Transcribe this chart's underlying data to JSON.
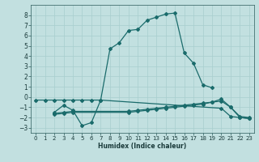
{
  "xlabel": "Humidex (Indice chaleur)",
  "bg_color": "#c2e0e0",
  "grid_color": "#a8cece",
  "line_color": "#1a6b6b",
  "xlim": [
    -0.5,
    23.5
  ],
  "ylim": [
    -3.5,
    9.0
  ],
  "xticks": [
    0,
    1,
    2,
    3,
    4,
    5,
    6,
    7,
    8,
    9,
    10,
    11,
    12,
    13,
    14,
    15,
    16,
    17,
    18,
    19,
    20,
    21,
    22,
    23
  ],
  "yticks": [
    -3,
    -2,
    -1,
    0,
    1,
    2,
    3,
    4,
    5,
    6,
    7,
    8
  ],
  "lines": [
    {
      "x": [
        0,
        1,
        2,
        3,
        4,
        5,
        6,
        7,
        8,
        9,
        10,
        11,
        12,
        13,
        14,
        15,
        16,
        17,
        18,
        19
      ],
      "y": [
        -0.3,
        -0.3,
        -0.3,
        -0.3,
        -0.3,
        -0.3,
        -0.3,
        -0.3,
        4.7,
        5.3,
        6.5,
        6.6,
        7.5,
        7.8,
        8.1,
        8.2,
        4.3,
        3.3,
        1.2,
        0.9
      ]
    },
    {
      "x": [
        2,
        3,
        4,
        5,
        6,
        7,
        20,
        21,
        22,
        23
      ],
      "y": [
        -1.5,
        -0.8,
        -1.3,
        -2.8,
        -2.5,
        -0.3,
        -1.1,
        -1.9,
        -2.0,
        -2.1
      ]
    },
    {
      "x": [
        2,
        3,
        4,
        10,
        11,
        12,
        13,
        14,
        15,
        16,
        17,
        18,
        19,
        20,
        21,
        22,
        23
      ],
      "y": [
        -1.6,
        -1.5,
        -1.4,
        -1.4,
        -1.3,
        -1.2,
        -1.1,
        -1.0,
        -0.9,
        -0.8,
        -0.7,
        -0.6,
        -0.5,
        -0.4,
        -1.0,
        -2.0,
        -2.1
      ]
    },
    {
      "x": [
        2,
        3,
        4,
        10,
        11,
        12,
        13,
        14,
        15,
        16,
        17,
        18,
        19,
        20,
        21,
        22,
        23
      ],
      "y": [
        -1.7,
        -1.6,
        -1.5,
        -1.5,
        -1.4,
        -1.3,
        -1.2,
        -1.1,
        -1.0,
        -0.9,
        -0.8,
        -0.7,
        -0.5,
        -0.2,
        -1.0,
        -1.9,
        -2.0
      ]
    }
  ]
}
